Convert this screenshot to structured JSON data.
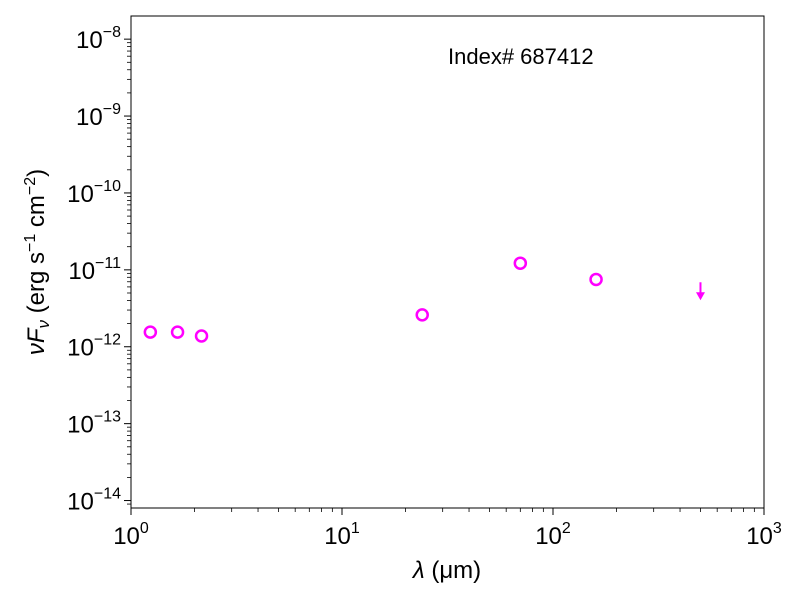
{
  "chart_data": {
    "type": "scatter",
    "title": "",
    "annotation": "Index# 687412",
    "xlabel": {
      "symbol": "λ",
      "unit": " (μm)"
    },
    "ylabel": {
      "symbol": "νF",
      "sub": "ν",
      "unit": " (erg s",
      "sup1": "−1",
      "mid": " cm",
      "sup2": "−2",
      "end": ")"
    },
    "x_scale": "log",
    "y_scale": "log",
    "xlim": [
      1,
      1000
    ],
    "ylim": [
      8e-15,
      2e-08
    ],
    "x_ticks": [
      {
        "value": 1,
        "base": "10",
        "exp": "0"
      },
      {
        "value": 10,
        "base": "10",
        "exp": "1"
      },
      {
        "value": 100,
        "base": "10",
        "exp": "2"
      },
      {
        "value": 1000,
        "base": "10",
        "exp": "3"
      }
    ],
    "y_ticks": [
      {
        "value": 1e-14,
        "base": "10",
        "exp": "−14"
      },
      {
        "value": 1e-13,
        "base": "10",
        "exp": "−13"
      },
      {
        "value": 1e-12,
        "base": "10",
        "exp": "−12"
      },
      {
        "value": 1e-11,
        "base": "10",
        "exp": "−11"
      },
      {
        "value": 1e-10,
        "base": "10",
        "exp": "−10"
      },
      {
        "value": 1e-09,
        "base": "10",
        "exp": "−9"
      },
      {
        "value": 1e-08,
        "base": "10",
        "exp": "−8"
      }
    ],
    "marker_color": "#ff00ff",
    "points": [
      {
        "x": 1.235,
        "y": 1.55e-12
      },
      {
        "x": 1.662,
        "y": 1.55e-12
      },
      {
        "x": 2.159,
        "y": 1.38e-12
      },
      {
        "x": 24,
        "y": 2.6e-12
      },
      {
        "x": 70,
        "y": 1.22e-11
      },
      {
        "x": 160,
        "y": 7.5e-12
      }
    ],
    "upper_limits": [
      {
        "x": 500,
        "y": 4.4e-12
      }
    ]
  }
}
